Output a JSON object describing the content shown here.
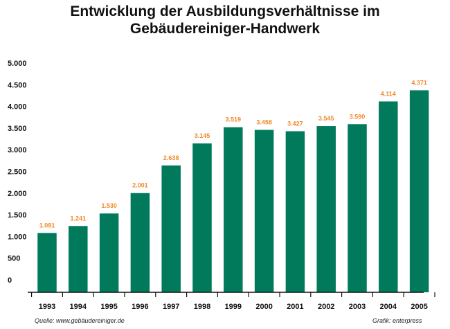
{
  "chart_data": {
    "type": "bar",
    "title_line1": "Entwicklung der Ausbildungsverhältnisse im",
    "title_line2": "Gebäudereiniger-Handwerk",
    "categories": [
      "1993",
      "1994",
      "1995",
      "1996",
      "1997",
      "1998",
      "1999",
      "2000",
      "2001",
      "2002",
      "2003",
      "2004",
      "2005"
    ],
    "values": [
      1081,
      1241,
      1530,
      2001,
      2638,
      3145,
      3519,
      3458,
      3427,
      3545,
      3590,
      4114,
      4371
    ],
    "value_labels": [
      "1.081",
      "1.241",
      "1.530",
      "2.001",
      "2.638",
      "3.145",
      "3.519",
      "3.458",
      "3.427",
      "3.545",
      "3.590",
      "4.114",
      "4.371"
    ],
    "y_ticks": [
      0,
      500,
      1000,
      1500,
      2000,
      2500,
      3000,
      3500,
      4000,
      4500,
      5000
    ],
    "y_tick_labels": [
      "0",
      "500",
      "1.000",
      "1.500",
      "2.000",
      "2.500",
      "3.000",
      "3.500",
      "4.000",
      "4.500",
      "5.000"
    ],
    "ylim": [
      0,
      5000
    ],
    "grid": false,
    "legend": "none",
    "bar_color": "#007a5a",
    "label_color": "#f08a2c"
  },
  "footer": {
    "source": "Quelle: www.gebäudereiniger.de",
    "credit": "Grafik: enterpress"
  }
}
